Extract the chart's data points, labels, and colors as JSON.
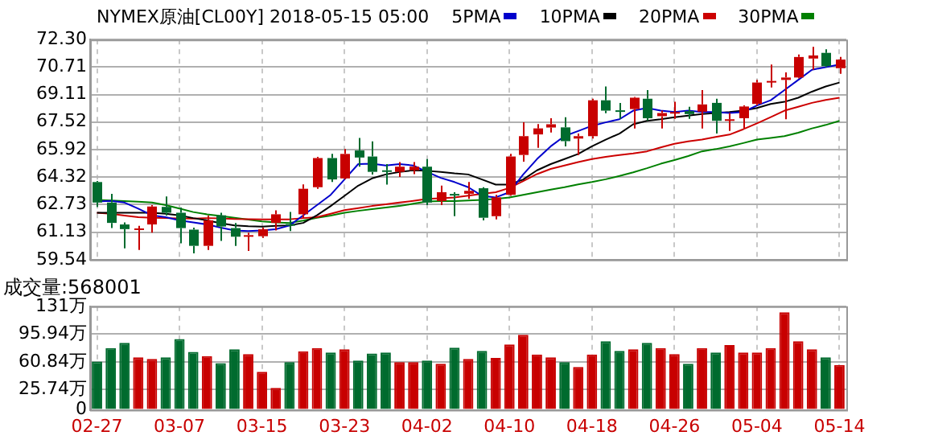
{
  "chart_data": [
    {
      "type": "candlestick",
      "title": "NYMEX原油[CL00Y] 2018-05-15 05:00",
      "ohlc": [
        [
          64.04,
          64.1,
          62.6,
          62.85
        ],
        [
          62.85,
          63.36,
          61.37,
          61.67
        ],
        [
          61.58,
          61.7,
          60.2,
          61.31
        ],
        [
          61.3,
          61.5,
          60.1,
          61.35
        ],
        [
          61.58,
          62.7,
          61.1,
          62.62
        ],
        [
          62.6,
          63.2,
          62.1,
          62.26
        ],
        [
          62.26,
          62.56,
          60.49,
          61.37
        ],
        [
          61.28,
          61.4,
          59.9,
          60.34
        ],
        [
          60.34,
          62.1,
          60.1,
          61.82
        ],
        [
          62.11,
          62.26,
          60.63,
          61.46
        ],
        [
          61.37,
          61.67,
          60.34,
          60.87
        ],
        [
          60.9,
          61.1,
          60.04,
          60.96
        ],
        [
          60.9,
          61.4,
          60.8,
          61.3
        ],
        [
          61.67,
          62.4,
          61.23,
          62.17
        ],
        [
          61.6,
          62.3,
          61.2,
          61.58
        ],
        [
          62.17,
          63.9,
          61.97,
          63.65
        ],
        [
          63.74,
          65.5,
          63.65,
          65.43
        ],
        [
          65.43,
          65.67,
          64.04,
          64.19
        ],
        [
          64.25,
          65.96,
          64.19,
          65.67
        ],
        [
          65.87,
          66.6,
          64.93,
          65.46
        ],
        [
          65.52,
          66.4,
          64.48,
          64.63
        ],
        [
          64.72,
          65.08,
          63.89,
          64.7
        ],
        [
          64.63,
          65.2,
          64.34,
          64.93
        ],
        [
          64.72,
          65.2,
          64.5,
          64.93
        ],
        [
          64.93,
          65.37,
          62.7,
          62.85
        ],
        [
          62.94,
          63.83,
          62.7,
          63.45
        ],
        [
          63.35,
          63.45,
          62.06,
          63.3
        ],
        [
          63.36,
          64.04,
          63.06,
          63.53
        ],
        [
          63.68,
          63.74,
          61.82,
          61.97
        ],
        [
          62.06,
          63.3,
          61.88,
          63.15
        ],
        [
          63.3,
          65.67,
          63.24,
          65.52
        ],
        [
          65.61,
          67.5,
          65.22,
          66.7
        ],
        [
          66.8,
          67.4,
          66.03,
          67.15
        ],
        [
          67.2,
          67.74,
          66.91,
          67.39
        ],
        [
          67.21,
          67.8,
          66.11,
          66.41
        ],
        [
          66.56,
          66.85,
          65.6,
          66.7
        ],
        [
          66.7,
          68.87,
          66.56,
          68.78
        ],
        [
          68.78,
          69.58,
          68.03,
          68.18
        ],
        [
          68.2,
          68.63,
          67.7,
          68.15
        ],
        [
          68.27,
          68.98,
          67.15,
          68.93
        ],
        [
          68.87,
          69.37,
          67.6,
          67.74
        ],
        [
          67.86,
          68.18,
          67.15,
          68.04
        ],
        [
          68.04,
          68.7,
          67.7,
          68.1
        ],
        [
          68.15,
          68.4,
          67.7,
          67.98
        ],
        [
          68.12,
          69.37,
          67.15,
          68.54
        ],
        [
          68.63,
          68.87,
          66.85,
          67.59
        ],
        [
          67.66,
          68.04,
          67.0,
          67.68
        ],
        [
          67.74,
          68.48,
          67.15,
          68.42
        ],
        [
          68.57,
          69.96,
          68.48,
          69.81
        ],
        [
          69.85,
          70.85,
          69.52,
          69.9
        ],
        [
          69.96,
          70.4,
          67.68,
          70.1
        ],
        [
          70.1,
          71.44,
          70.05,
          71.29
        ],
        [
          71.2,
          71.88,
          70.55,
          71.38
        ],
        [
          71.53,
          71.74,
          70.7,
          70.76
        ],
        [
          70.64,
          71.29,
          70.32,
          71.14
        ]
      ],
      "colors": [
        "#006b2e",
        "#006b2e",
        "#006b2e",
        "#c80000",
        "#c80000",
        "#006b2e",
        "#006b2e",
        "#006b2e",
        "#c80000",
        "#006b2e",
        "#006b2e",
        "#c80000",
        "#c80000",
        "#c80000",
        "#006b2e",
        "#c80000",
        "#c80000",
        "#006b2e",
        "#c80000",
        "#006b2e",
        "#006b2e",
        "#006b2e",
        "#c80000",
        "#c80000",
        "#006b2e",
        "#c80000",
        "#006b2e",
        "#c80000",
        "#006b2e",
        "#c80000",
        "#c80000",
        "#c80000",
        "#c80000",
        "#c80000",
        "#006b2e",
        "#c80000",
        "#c80000",
        "#006b2e",
        "#006b2e",
        "#c80000",
        "#006b2e",
        "#c80000",
        "#c80000",
        "#006b2e",
        "#c80000",
        "#006b2e",
        "#c80000",
        "#c80000",
        "#c80000",
        "#c80000",
        "#c80000",
        "#c80000",
        "#c80000",
        "#006b2e",
        "#c80000"
      ],
      "series": [
        {
          "name": "5PMA",
          "type": "line",
          "color": "#0000cc",
          "values": [
            62.91,
            62.95,
            62.85,
            62.5,
            62.11,
            62.0,
            61.82,
            61.7,
            61.58,
            61.4,
            61.23,
            61.2,
            61.23,
            61.3,
            61.52,
            62.11,
            62.7,
            63.3,
            64.19,
            65.08,
            65.1,
            65.0,
            65.08,
            65.0,
            64.63,
            64.28,
            64.04,
            63.74,
            63.24,
            63.15,
            63.45,
            64.48,
            65.37,
            66.11,
            66.7,
            67.0,
            67.3,
            67.5,
            67.68,
            68.18,
            68.33,
            68.18,
            68.1,
            68.18,
            68.1,
            68.1,
            68.04,
            68.1,
            68.48,
            68.78,
            69.37,
            69.96,
            70.55,
            70.7,
            70.85
          ]
        },
        {
          "name": "10PMA",
          "type": "line",
          "color": "#000000",
          "values": [
            62.26,
            62.26,
            62.26,
            62.26,
            62.26,
            62.2,
            62.11,
            61.95,
            61.82,
            61.65,
            61.52,
            61.48,
            61.46,
            61.5,
            61.52,
            61.67,
            62.11,
            62.65,
            63.24,
            63.83,
            64.25,
            64.48,
            64.63,
            64.72,
            64.69,
            64.63,
            64.54,
            64.48,
            64.19,
            63.89,
            63.89,
            64.19,
            64.72,
            65.08,
            65.37,
            65.67,
            66.11,
            66.5,
            66.85,
            67.39,
            67.59,
            67.68,
            67.8,
            67.89,
            67.98,
            68.04,
            68.1,
            68.18,
            68.33,
            68.57,
            68.69,
            68.93,
            69.28,
            69.58,
            69.81
          ]
        },
        {
          "name": "20PMA",
          "type": "line",
          "color": "#cc0000",
          "values": [
            62.26,
            62.2,
            62.1,
            62.0,
            61.97,
            61.95,
            61.93,
            61.92,
            61.95,
            61.93,
            61.9,
            61.89,
            61.88,
            61.88,
            61.88,
            61.95,
            62.0,
            62.2,
            62.41,
            62.53,
            62.65,
            62.75,
            62.85,
            62.95,
            63.06,
            63.1,
            63.15,
            63.25,
            63.36,
            63.45,
            63.7,
            64.1,
            64.5,
            64.8,
            65.0,
            65.2,
            65.37,
            65.5,
            65.61,
            65.7,
            65.82,
            66.05,
            66.26,
            66.4,
            66.5,
            66.65,
            66.79,
            67.1,
            67.44,
            67.8,
            68.18,
            68.4,
            68.63,
            68.8,
            68.93
          ]
        },
        {
          "name": "30PMA",
          "type": "line",
          "color": "#008000",
          "values": [
            63.0,
            62.97,
            62.93,
            62.9,
            62.85,
            62.7,
            62.5,
            62.3,
            62.17,
            62.07,
            61.97,
            61.86,
            61.76,
            61.7,
            61.67,
            61.8,
            61.97,
            62.1,
            62.26,
            62.37,
            62.47,
            62.56,
            62.65,
            62.78,
            62.91,
            62.93,
            62.94,
            62.97,
            63.0,
            63.06,
            63.15,
            63.3,
            63.45,
            63.6,
            63.74,
            63.9,
            64.04,
            64.2,
            64.39,
            64.6,
            64.84,
            65.1,
            65.31,
            65.55,
            65.82,
            65.95,
            66.11,
            66.3,
            66.5,
            66.6,
            66.7,
            66.9,
            67.15,
            67.35,
            67.59
          ]
        }
      ],
      "ylim": [
        59.54,
        72.3
      ],
      "yticks": [
        59.54,
        61.13,
        62.73,
        64.32,
        65.92,
        67.52,
        69.11,
        70.71,
        {
          "value": 72.3,
          "label": "72.30"
        }
      ],
      "grid": true,
      "legend": "top",
      "tick_labels": "y",
      "marker": "none"
    },
    {
      "type": "bar",
      "title": "成交量:568001",
      "categories": [
        "02-27",
        null,
        null,
        null,
        null,
        null,
        "03-07",
        null,
        null,
        null,
        null,
        null,
        "03-15",
        null,
        null,
        null,
        null,
        null,
        "03-23",
        null,
        null,
        null,
        null,
        null,
        "04-02",
        null,
        null,
        null,
        null,
        null,
        "04-10",
        null,
        null,
        null,
        null,
        null,
        "04-18",
        null,
        null,
        null,
        null,
        null,
        "04-26",
        null,
        null,
        null,
        null,
        null,
        "05-04",
        null,
        null,
        null,
        null,
        null,
        "05-14"
      ],
      "values": [
        61.1,
        78.1,
        84.9,
        66.5,
        64.5,
        66.5,
        89.6,
        73.3,
        67.9,
        59.1,
        76.7,
        70.6,
        48.2,
        27.8,
        60.4,
        74.0,
        78.1,
        72.6,
        76.7,
        62.4,
        71.3,
        72.6,
        60.4,
        60.4,
        62.4,
        58.4,
        78.7,
        64.5,
        74.7,
        65.8,
        82.8,
        95.0,
        69.9,
        66.5,
        60.4,
        54.3,
        69.9,
        86.9,
        74.7,
        76.7,
        84.9,
        78.1,
        70.6,
        58.4,
        78.1,
        72.6,
        82.1,
        72.6,
        72.6,
        78.1,
        123.5,
        86.9,
        76.7,
        66.5,
        56.8
      ],
      "colors": [
        "#006b2e",
        "#006b2e",
        "#006b2e",
        "#c80000",
        "#c80000",
        "#006b2e",
        "#006b2e",
        "#006b2e",
        "#c80000",
        "#006b2e",
        "#006b2e",
        "#c80000",
        "#c80000",
        "#c80000",
        "#006b2e",
        "#c80000",
        "#c80000",
        "#006b2e",
        "#c80000",
        "#006b2e",
        "#006b2e",
        "#006b2e",
        "#c80000",
        "#c80000",
        "#006b2e",
        "#c80000",
        "#006b2e",
        "#c80000",
        "#006b2e",
        "#c80000",
        "#c80000",
        "#c80000",
        "#c80000",
        "#c80000",
        "#006b2e",
        "#c80000",
        "#c80000",
        "#006b2e",
        "#006b2e",
        "#c80000",
        "#006b2e",
        "#c80000",
        "#c80000",
        "#006b2e",
        "#c80000",
        "#006b2e",
        "#c80000",
        "#c80000",
        "#c80000",
        "#c80000",
        "#c80000",
        "#c80000",
        "#c80000",
        "#006b2e",
        "#c80000"
      ],
      "ylim": [
        0,
        131
      ],
      "yticks": [
        0,
        {
          "value": 25.74,
          "label": "25.74万"
        },
        {
          "value": 60.84,
          "label": "60.84万"
        },
        {
          "value": 95.94,
          "label": "95.94万"
        },
        {
          "value": 131,
          "label": "131万"
        }
      ],
      "grid": true
    }
  ]
}
